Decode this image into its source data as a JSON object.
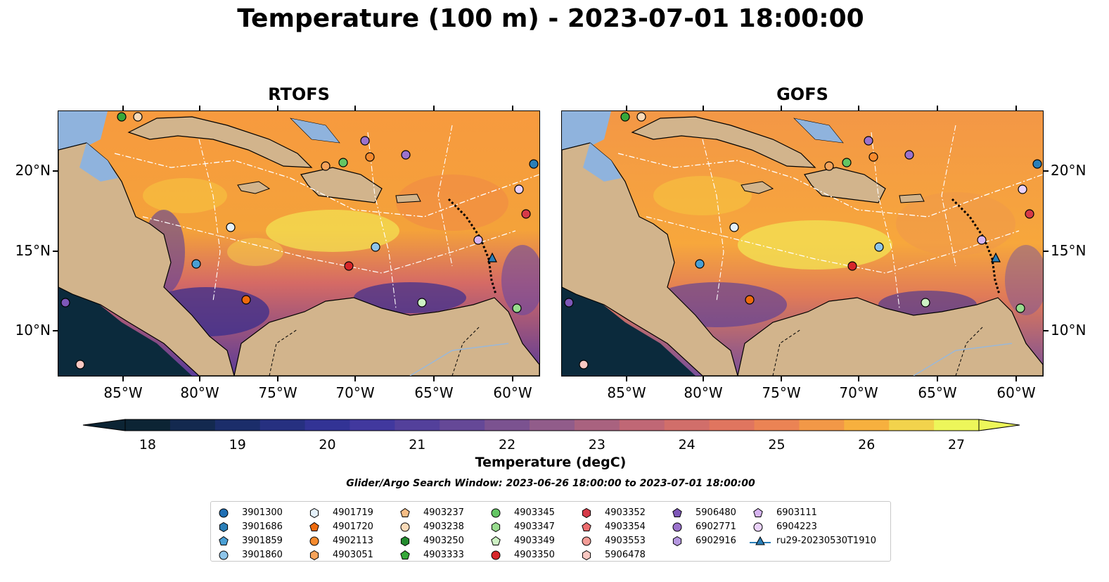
{
  "title": "Temperature (100 m) - 2023-07-01 18:00:00",
  "panels": [
    {
      "title": "RTOFS"
    },
    {
      "title": "GOFS"
    }
  ],
  "x_ticks": [
    "85°W",
    "80°W",
    "75°W",
    "70°W",
    "65°W",
    "60°W"
  ],
  "y_ticks": [
    "20°N",
    "15°N",
    "10°N"
  ],
  "colorbar": {
    "label": "Temperature (degC)",
    "ticks": [
      "18",
      "19",
      "20",
      "21",
      "22",
      "23",
      "24",
      "25",
      "26",
      "27"
    ],
    "min": 18,
    "max": 27,
    "step": 0.5,
    "colormap": "thermal"
  },
  "search_window": "Glider/Argo Search Window: 2023-06-26 18:00:00 to 2023-07-01 18:00:00",
  "legend": {
    "columns": [
      [
        {
          "label": "3901300",
          "marker": "circle",
          "color": "#1f6fb4"
        },
        {
          "label": "3901686",
          "marker": "hexagon",
          "color": "#2a7fb8"
        },
        {
          "label": "3901859",
          "marker": "pentagon",
          "color": "#4a9fd4"
        },
        {
          "label": "3901860",
          "marker": "circle",
          "color": "#8ec5ea"
        }
      ],
      [
        {
          "label": "4901719",
          "marker": "hexagon",
          "color": "#e4f1fb"
        },
        {
          "label": "4901720",
          "marker": "pentagon",
          "color": "#ee6a0c"
        },
        {
          "label": "4902113",
          "marker": "circle",
          "color": "#f68a2e"
        },
        {
          "label": "4903051",
          "marker": "hexagon",
          "color": "#f6a35a"
        }
      ],
      [
        {
          "label": "4903237",
          "marker": "pentagon",
          "color": "#f7bd85"
        },
        {
          "label": "4903238",
          "marker": "circle",
          "color": "#fbdab8"
        },
        {
          "label": "4903250",
          "marker": "hexagon",
          "color": "#238b2e"
        },
        {
          "label": "4903333",
          "marker": "pentagon",
          "color": "#37a83a"
        }
      ],
      [
        {
          "label": "4903345",
          "marker": "circle",
          "color": "#63c563"
        },
        {
          "label": "4903347",
          "marker": "hexagon",
          "color": "#98dc8e"
        },
        {
          "label": "4903349",
          "marker": "pentagon",
          "color": "#cdf2c4"
        },
        {
          "label": "4903350",
          "marker": "circle",
          "color": "#d7262a"
        }
      ],
      [
        {
          "label": "4903352",
          "marker": "hexagon",
          "color": "#d63a48"
        },
        {
          "label": "4903354",
          "marker": "pentagon",
          "color": "#ec6c6e"
        },
        {
          "label": "4903553",
          "marker": "circle",
          "color": "#f39c96"
        },
        {
          "label": "5906478",
          "marker": "hexagon",
          "color": "#f9c8c2"
        }
      ],
      [
        {
          "label": "5906480",
          "marker": "pentagon",
          "color": "#7e57b8"
        },
        {
          "label": "6902771",
          "marker": "circle",
          "color": "#9b72cc"
        },
        {
          "label": "6902916",
          "marker": "hexagon",
          "color": "#b597e0"
        }
      ],
      [
        {
          "label": "6903111",
          "marker": "pentagon",
          "color": "#d6b4f0"
        },
        {
          "label": "6904223",
          "marker": "circle",
          "color": "#ead2fa"
        },
        {
          "label": "ru29-20230530T1910",
          "marker": "triangle-line",
          "color": "#2a7fb8"
        }
      ]
    ]
  }
}
